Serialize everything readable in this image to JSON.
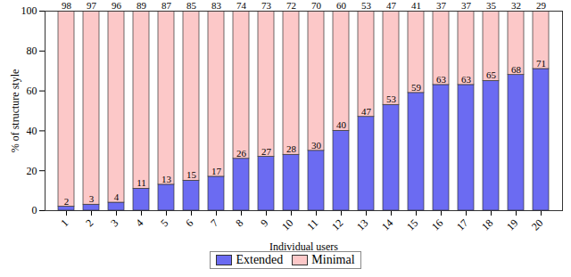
{
  "chart_data": {
    "type": "bar",
    "stacked": true,
    "data_labels": true,
    "legend": "bottom",
    "x_label": "Individual users",
    "y_label": "% of structure style",
    "categories": [
      "1",
      "2",
      "3",
      "4",
      "5",
      "6",
      "7",
      "8",
      "9",
      "10",
      "11",
      "12",
      "13",
      "14",
      "15",
      "16",
      "17",
      "18",
      "19",
      "20"
    ],
    "series": [
      {
        "name": "Extended",
        "color": "#6b6bf2",
        "values": [
          2,
          3,
          4,
          11,
          13,
          15,
          17,
          26,
          27,
          28,
          30,
          40,
          47,
          53,
          59,
          63,
          63,
          65,
          68,
          71
        ]
      },
      {
        "name": "Minimal",
        "color": "#fcc8c8",
        "values": [
          98,
          97,
          96,
          89,
          87,
          85,
          83,
          74,
          73,
          72,
          70,
          60,
          53,
          47,
          41,
          37,
          37,
          35,
          32,
          29
        ]
      }
    ],
    "ylim": [
      0,
      100
    ],
    "yticks": [
      0,
      20,
      40,
      60,
      80,
      100
    ]
  }
}
